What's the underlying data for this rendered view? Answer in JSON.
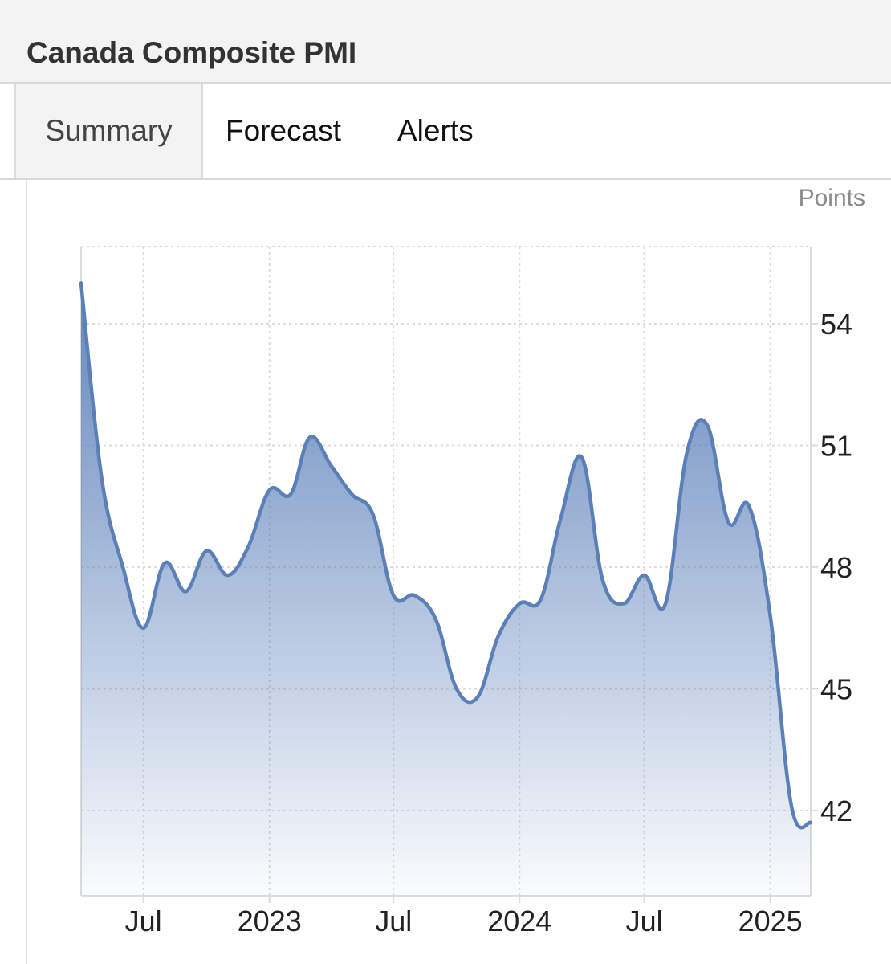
{
  "header": {
    "title": "Canada Composite PMI"
  },
  "tabs": [
    {
      "label": "Summary",
      "active": true
    },
    {
      "label": "Forecast",
      "active": false
    },
    {
      "label": "Alerts",
      "active": false
    }
  ],
  "colors": {
    "line": "#5b80b8",
    "fill_top": "#5a7fb9",
    "grid": "#dcdcdc"
  },
  "chart_data": {
    "type": "area",
    "ylabel": "Points",
    "ylim": [
      39.9,
      55.9
    ],
    "xlim": [
      "2022-04-01",
      "2025-03-01"
    ],
    "grid": true,
    "y_ticks": [
      42,
      45,
      48,
      51,
      54
    ],
    "x_ticks": [
      {
        "label": "Jul",
        "date": "2022-07-01"
      },
      {
        "label": "2023",
        "date": "2023-01-01"
      },
      {
        "label": "Jul",
        "date": "2023-07-01"
      },
      {
        "label": "2024",
        "date": "2024-01-01"
      },
      {
        "label": "Jul",
        "date": "2024-07-01"
      },
      {
        "label": "2025",
        "date": "2025-01-01"
      }
    ],
    "series": [
      {
        "x": [
          "2022-04-01",
          "2022-05-01",
          "2022-06-01",
          "2022-07-01",
          "2022-08-01",
          "2022-09-01",
          "2022-10-01",
          "2022-11-01",
          "2022-12-01",
          "2023-01-01",
          "2023-02-01",
          "2023-03-01",
          "2023-04-01",
          "2023-05-01",
          "2023-06-01",
          "2023-07-01",
          "2023-08-01",
          "2023-09-01",
          "2023-10-01",
          "2023-11-01",
          "2023-12-01",
          "2024-01-01",
          "2024-02-01",
          "2024-03-01",
          "2024-04-01",
          "2024-05-01",
          "2024-06-01",
          "2024-07-01",
          "2024-08-01",
          "2024-09-01",
          "2024-10-01",
          "2024-11-01",
          "2024-12-01",
          "2025-01-01",
          "2025-02-01",
          "2025-03-01"
        ],
        "values": [
          55.0,
          50.2,
          48.0,
          46.5,
          48.1,
          47.4,
          48.4,
          47.8,
          48.5,
          49.9,
          49.8,
          51.2,
          50.5,
          49.8,
          49.3,
          47.3,
          47.3,
          46.7,
          45.0,
          44.8,
          46.3,
          47.1,
          47.2,
          49.2,
          50.7,
          47.7,
          47.1,
          47.8,
          47.1,
          50.8,
          51.5,
          49.1,
          49.5,
          46.8,
          42.1,
          41.7
        ]
      }
    ]
  }
}
